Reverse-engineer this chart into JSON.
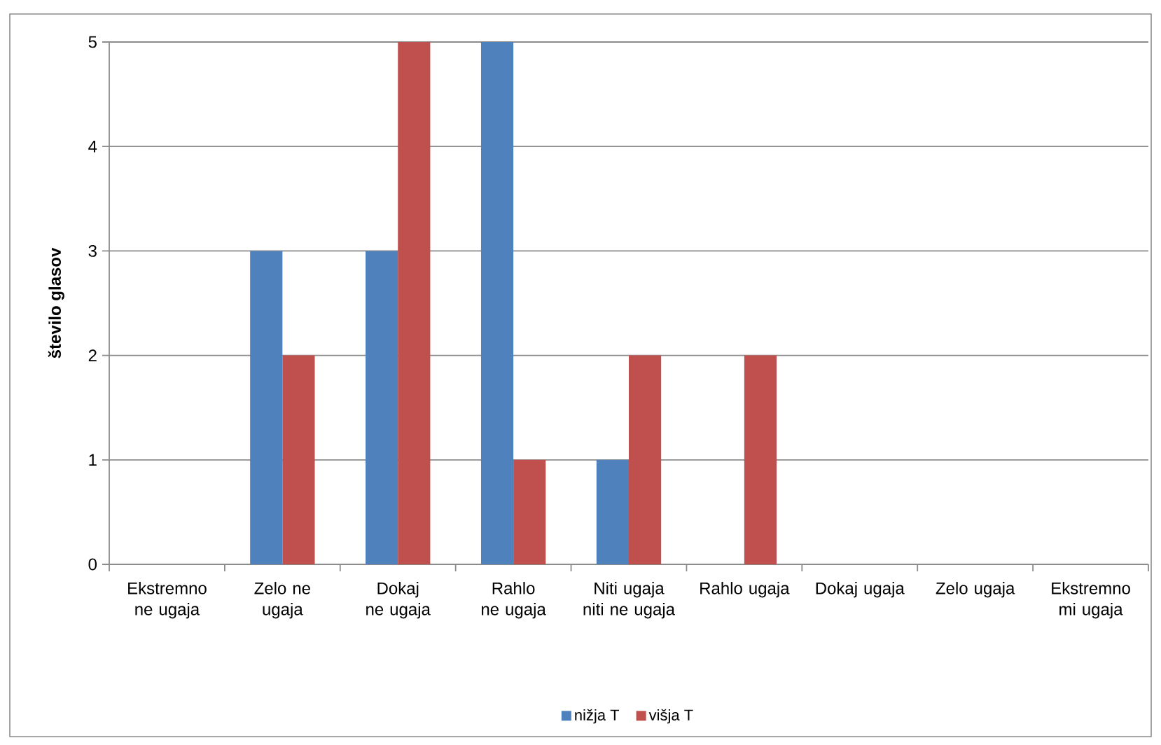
{
  "chart_data": {
    "type": "bar",
    "ylabel": "število glasov",
    "categories": [
      "Ekstremno ne ugaja",
      "Zelo ne ugaja",
      "Dokaj ne ugaja",
      "Rahlo ne ugaja",
      "Niti ugaja niti ne ugaja",
      "Rahlo ugaja",
      "Dokaj ugaja",
      "Zelo ugaja",
      "Ekstremno mi ugaja"
    ],
    "series": [
      {
        "name": "nižja T",
        "color": "#4f81bd",
        "values": [
          0,
          3,
          3,
          5,
          1,
          0,
          0,
          0,
          0
        ]
      },
      {
        "name": "višja T",
        "color": "#c0504d",
        "values": [
          0,
          2,
          5,
          1,
          2,
          2,
          0,
          0,
          0
        ]
      }
    ],
    "ylim": [
      0,
      5
    ],
    "yticks": [
      0,
      1,
      2,
      3,
      4,
      5
    ],
    "grid": "y",
    "legend": "bottom"
  }
}
